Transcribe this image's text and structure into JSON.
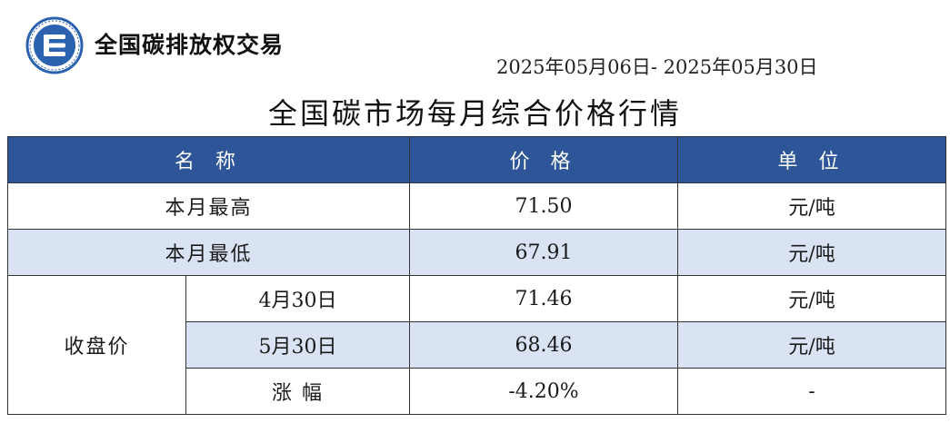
{
  "header": {
    "brand_name": "全国碳排放权交易",
    "date_range": "2025年05月06日- 2025年05月30日",
    "title": "全国碳市场每月综合价格行情"
  },
  "colors": {
    "header_bg": "#2d5597",
    "row_shade": "#dae3f3",
    "logo_blue": "#2a62b0"
  },
  "logo": {
    "icon": "carbon-exchange-logo-icon"
  },
  "table": {
    "columns": [
      "名 称",
      "价 格",
      "单 位"
    ],
    "rows": {
      "month_high": {
        "label": "本月最高",
        "price": "71.50",
        "unit": "元/吨"
      },
      "month_low": {
        "label": "本月最低",
        "price": "67.91",
        "unit": "元/吨"
      },
      "close_group_label": "收盘价",
      "close_apr": {
        "label": "4月30日",
        "price": "71.46",
        "unit": "元/吨"
      },
      "close_may": {
        "label": "5月30日",
        "price": "68.46",
        "unit": "元/吨"
      },
      "change": {
        "label": "涨 幅",
        "price": "-4.20%",
        "unit": "-"
      }
    }
  }
}
